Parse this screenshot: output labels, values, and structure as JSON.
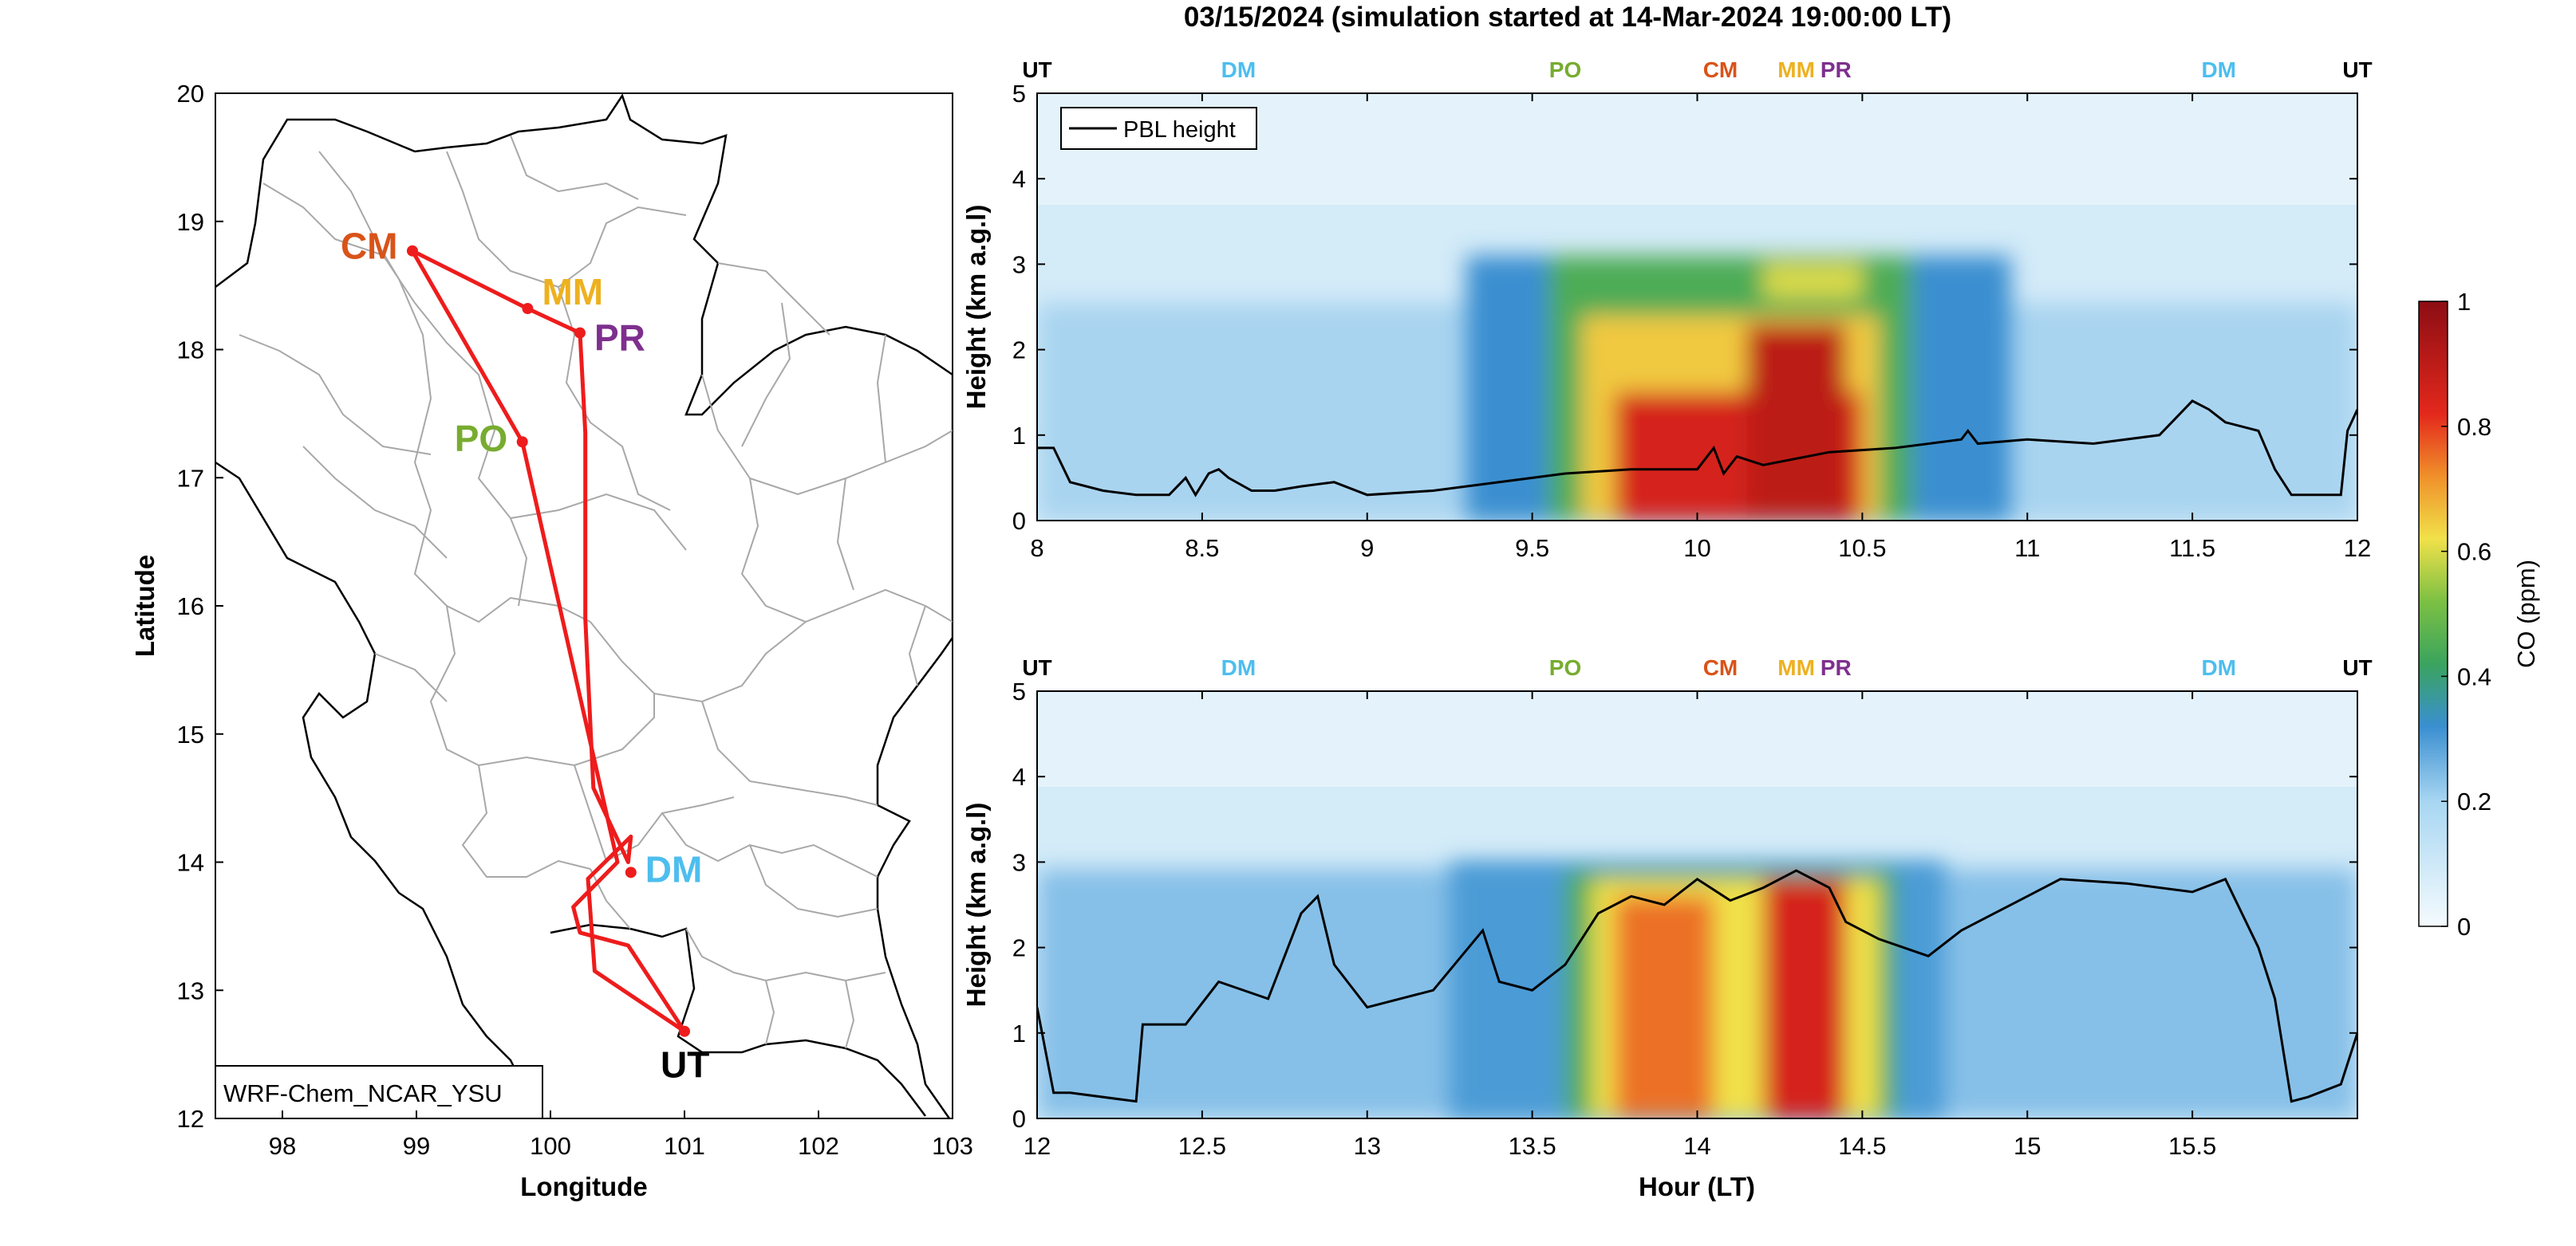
{
  "figure": {
    "title": "03/15/2024 (simulation started at 14-Mar-2024 19:00:00 LT)"
  },
  "map": {
    "xlabel": "Longitude",
    "ylabel": "Latitude",
    "xlim": [
      97.5,
      103
    ],
    "ylim": [
      12,
      20
    ],
    "xticks": [
      "98",
      "99",
      "100",
      "101",
      "102",
      "103"
    ],
    "yticks": [
      "12",
      "13",
      "14",
      "15",
      "16",
      "17",
      "18",
      "19",
      "20"
    ],
    "model_label": "WRF-Chem_NCAR_YSU",
    "route_color": "#ee1c1c",
    "stations": [
      {
        "code": "CM",
        "lon": 98.97,
        "lat": 18.77,
        "color": "#d95319"
      },
      {
        "code": "MM",
        "lon": 99.83,
        "lat": 18.32,
        "color": "#edb120"
      },
      {
        "code": "PR",
        "lon": 100.22,
        "lat": 18.13,
        "color": "#7e2f8e"
      },
      {
        "code": "PO",
        "lon": 99.79,
        "lat": 17.28,
        "color": "#77ac30"
      },
      {
        "code": "DM",
        "lon": 100.6,
        "lat": 13.92,
        "color": "#4dbeee"
      },
      {
        "code": "UT",
        "lon": 101.0,
        "lat": 12.68,
        "color": "#000000"
      }
    ],
    "route": [
      [
        101.0,
        12.68
      ],
      [
        100.33,
        13.15
      ],
      [
        100.28,
        13.87
      ],
      [
        100.6,
        14.2
      ],
      [
        100.58,
        14.0
      ],
      [
        100.32,
        14.58
      ],
      [
        100.26,
        15.9
      ],
      [
        100.26,
        17.35
      ],
      [
        100.22,
        18.13
      ],
      [
        99.83,
        18.32
      ],
      [
        98.97,
        18.77
      ],
      [
        99.79,
        17.28
      ],
      [
        100.5,
        14.0
      ],
      [
        100.17,
        13.65
      ],
      [
        100.22,
        13.45
      ],
      [
        100.58,
        13.35
      ],
      [
        101.0,
        12.68
      ]
    ]
  },
  "chart_data": [
    {
      "type": "heatmap",
      "xlabel": "",
      "ylabel": "Height (km a.g.l)",
      "xlim": [
        8,
        12
      ],
      "ylim": [
        0,
        5
      ],
      "xticks": [
        8,
        8.5,
        9,
        9.5,
        10,
        10.5,
        11,
        11.5,
        12
      ],
      "xtick_labels": [
        "8",
        "8.5",
        "9",
        "9.5",
        "10",
        "10.5",
        "11",
        "11.5",
        "12"
      ],
      "yticks": [
        0,
        1,
        2,
        3,
        4,
        5
      ],
      "legend": {
        "entries": [
          "PBL height"
        ],
        "position": "top-left"
      },
      "site_markers": [
        {
          "label": "UT",
          "color": "#000000"
        },
        {
          "label": "DM",
          "color": "#4dbeee"
        },
        {
          "label": "PO",
          "color": "#77ac30"
        },
        {
          "label": "CM",
          "color": "#d95319"
        },
        {
          "label": "MM",
          "color": "#edb120"
        },
        {
          "label": "PR",
          "color": "#7e2f8e"
        },
        {
          "label": "DM",
          "color": "#4dbeee"
        },
        {
          "label": "UT",
          "color": "#000000"
        }
      ],
      "site_marker_x": [
        8,
        8.61,
        9.6,
        10.07,
        10.3,
        10.42,
        11.58,
        12
      ],
      "pbl_height": {
        "hour": [
          8,
          8.05,
          8.1,
          8.2,
          8.3,
          8.4,
          8.45,
          8.48,
          8.52,
          8.55,
          8.58,
          8.65,
          8.72,
          8.8,
          8.9,
          9.0,
          9.2,
          9.4,
          9.6,
          9.8,
          10.0,
          10.05,
          10.08,
          10.12,
          10.2,
          10.4,
          10.6,
          10.8,
          10.82,
          10.85,
          11.0,
          11.2,
          11.4,
          11.45,
          11.5,
          11.55,
          11.6,
          11.7,
          11.75,
          11.8,
          11.95,
          11.97,
          12.0
        ],
        "km": [
          0.85,
          0.85,
          0.45,
          0.35,
          0.3,
          0.3,
          0.5,
          0.3,
          0.55,
          0.6,
          0.5,
          0.35,
          0.35,
          0.4,
          0.45,
          0.3,
          0.35,
          0.45,
          0.55,
          0.6,
          0.6,
          0.85,
          0.55,
          0.75,
          0.65,
          0.8,
          0.85,
          0.95,
          1.05,
          0.9,
          0.95,
          0.9,
          1.0,
          1.2,
          1.4,
          1.3,
          1.15,
          1.05,
          0.6,
          0.3,
          0.3,
          1.05,
          1.3
        ]
      },
      "co_blobs": [
        {
          "x0": 9.3,
          "x1": 10.95,
          "y0": 0,
          "y1": 3.1,
          "ppm": 0.32
        },
        {
          "x0": 9.55,
          "x1": 10.65,
          "y0": 0,
          "y1": 3.1,
          "ppm": 0.45
        },
        {
          "x0": 9.65,
          "x1": 10.55,
          "y0": 0,
          "y1": 2.4,
          "ppm": 0.65
        },
        {
          "x0": 9.75,
          "x1": 10.5,
          "y0": 0,
          "y1": 1.5,
          "ppm": 0.85
        },
        {
          "x0": 10.15,
          "x1": 10.45,
          "y0": 0,
          "y1": 2.3,
          "ppm": 0.9
        },
        {
          "x0": 10.2,
          "x1": 10.5,
          "y0": 2.6,
          "y1": 3.0,
          "ppm": 0.6
        }
      ]
    },
    {
      "type": "heatmap",
      "xlabel": "Hour (LT)",
      "ylabel": "Height (km a.g.l)",
      "xlim": [
        12,
        16
      ],
      "ylim": [
        0,
        5
      ],
      "xticks": [
        12,
        12.5,
        13,
        13.5,
        14,
        14.5,
        15,
        15.5
      ],
      "xtick_labels": [
        "12",
        "12.5",
        "13",
        "13.5",
        "14",
        "14.5",
        "15",
        "15.5"
      ],
      "yticks": [
        0,
        1,
        2,
        3,
        4,
        5
      ],
      "site_markers": [
        {
          "label": "UT",
          "color": "#000000"
        },
        {
          "label": "DM",
          "color": "#4dbeee"
        },
        {
          "label": "PO",
          "color": "#77ac30"
        },
        {
          "label": "CM",
          "color": "#d95319"
        },
        {
          "label": "MM",
          "color": "#edb120"
        },
        {
          "label": "PR",
          "color": "#7e2f8e"
        },
        {
          "label": "DM",
          "color": "#4dbeee"
        },
        {
          "label": "UT",
          "color": "#000000"
        }
      ],
      "site_marker_x": [
        12,
        12.61,
        13.6,
        14.07,
        14.3,
        14.42,
        15.58,
        16
      ],
      "pbl_height": {
        "hour": [
          12,
          12.05,
          12.1,
          12.3,
          12.32,
          12.45,
          12.55,
          12.7,
          12.8,
          12.85,
          12.9,
          13.0,
          13.2,
          13.35,
          13.4,
          13.5,
          13.6,
          13.7,
          13.8,
          13.9,
          14.0,
          14.1,
          14.2,
          14.3,
          14.4,
          14.45,
          14.55,
          14.7,
          14.8,
          14.9,
          15.0,
          15.1,
          15.3,
          15.5,
          15.6,
          15.7,
          15.75,
          15.8,
          15.85,
          15.95,
          16.0
        ],
        "km": [
          1.3,
          0.3,
          0.3,
          0.2,
          1.1,
          1.1,
          1.6,
          1.4,
          2.4,
          2.6,
          1.8,
          1.3,
          1.5,
          2.2,
          1.6,
          1.5,
          1.8,
          2.4,
          2.6,
          2.5,
          2.8,
          2.55,
          2.7,
          2.9,
          2.7,
          2.3,
          2.1,
          1.9,
          2.2,
          2.4,
          2.6,
          2.8,
          2.75,
          2.65,
          2.8,
          2.0,
          1.4,
          0.2,
          0.25,
          0.4,
          1.0
        ]
      },
      "co_blobs": [
        {
          "x0": 13.25,
          "x1": 14.75,
          "y0": 0,
          "y1": 3.0,
          "ppm": 0.3
        },
        {
          "x0": 13.6,
          "x1": 14.6,
          "y0": 0,
          "y1": 2.9,
          "ppm": 0.45
        },
        {
          "x0": 13.68,
          "x1": 14.55,
          "y0": 0,
          "y1": 2.8,
          "ppm": 0.62
        },
        {
          "x0": 13.75,
          "x1": 14.05,
          "y0": 0,
          "y1": 2.6,
          "ppm": 0.75
        },
        {
          "x0": 14.2,
          "x1": 14.45,
          "y0": 0,
          "y1": 2.8,
          "ppm": 0.85
        }
      ]
    }
  ],
  "colorbar": {
    "label": "CO (ppm)",
    "ticks": [
      "0",
      "0.2",
      "0.4",
      "0.6",
      "0.8",
      "1"
    ],
    "range": [
      0,
      1
    ]
  },
  "colors": {
    "co_low": "#f4fbfe",
    "co_blue": "#3a8fd0",
    "co_green": "#3cab44",
    "co_yellow": "#f1e14a",
    "co_red": "#e3281c",
    "co_dark": "#8c0d14"
  }
}
